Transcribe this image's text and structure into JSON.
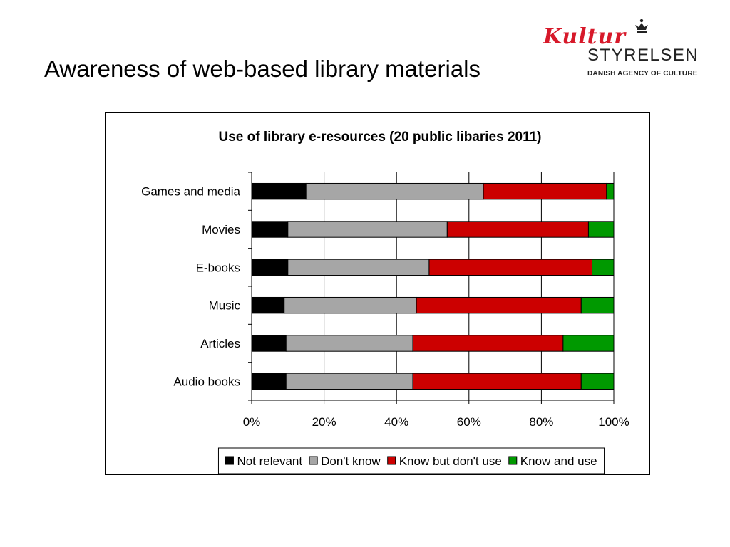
{
  "slide": {
    "title": "Awareness of web-based library materials"
  },
  "logo": {
    "script_text": "Kultur",
    "wordmark": "STYRELSEN",
    "subtitle": "DANISH AGENCY OF CULTURE",
    "icon": "crown-icon"
  },
  "chart_data": {
    "type": "bar",
    "orientation": "horizontal",
    "stacked": "percent",
    "title": "Use of library e-resources (20 public libaries 2011)",
    "categories": [
      "Games and media",
      "Movies",
      "E-books",
      "Music",
      "Articles",
      "Audio books"
    ],
    "series": [
      {
        "name": "Not relevant",
        "color": "#000000",
        "values": [
          15,
          10,
          10,
          9,
          9.5,
          9.5
        ]
      },
      {
        "name": "Don't know",
        "color": "#a6a6a6",
        "values": [
          49,
          44,
          39,
          36.5,
          35,
          35
        ]
      },
      {
        "name": "Know but don't use",
        "color": "#cc0000",
        "values": [
          34,
          39,
          45,
          45.5,
          41.5,
          46.5
        ]
      },
      {
        "name": "Know and use",
        "color": "#009900",
        "values": [
          2,
          7,
          6,
          9,
          14,
          9
        ]
      }
    ],
    "xlim": [
      0,
      100
    ],
    "xticks": [
      "0%",
      "20%",
      "40%",
      "60%",
      "80%",
      "100%"
    ],
    "grid": true,
    "legend_position": "bottom"
  }
}
